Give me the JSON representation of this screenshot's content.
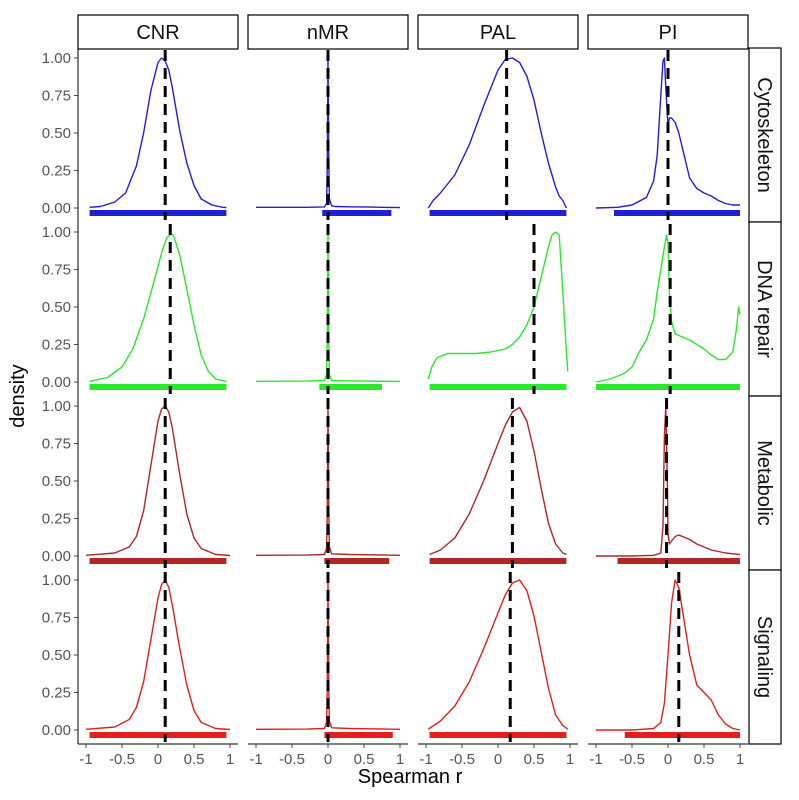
{
  "chart_data": {
    "type": "line",
    "subtype": "faceted-density",
    "xlabel": "Spearman r",
    "ylabel": "density",
    "xlim": [
      -1,
      1
    ],
    "ylim": [
      0,
      1
    ],
    "x_ticks": [
      -1,
      -0.5,
      0,
      0.5,
      1
    ],
    "x_tick_labels": [
      "-1",
      "-0.5",
      "0",
      "0.5",
      "1"
    ],
    "y_ticks": [
      0,
      0.25,
      0.5,
      0.75,
      1
    ],
    "y_tick_labels": [
      "0.00",
      "0.25",
      "0.50",
      "0.75",
      "1.00"
    ],
    "columns": [
      "CNR",
      "nMR",
      "PAL",
      "PI"
    ],
    "rows": [
      {
        "name": "Cytoskeleton",
        "color": "#1f1fd6"
      },
      {
        "name": "DNA repair",
        "color": "#2ce82c"
      },
      {
        "name": "Metabolic",
        "color": "#b22626"
      },
      {
        "name": "Signaling",
        "color": "#e0201c"
      }
    ],
    "panels": [
      {
        "row": "Cytoskeleton",
        "column": "CNR",
        "median": 0.1,
        "rug": [
          -0.95,
          0.95
        ],
        "x": [
          -0.95,
          -0.8,
          -0.6,
          -0.45,
          -0.3,
          -0.2,
          -0.1,
          0,
          0.05,
          0.1,
          0.15,
          0.2,
          0.3,
          0.4,
          0.5,
          0.6,
          0.75,
          0.9,
          0.95
        ],
        "y": [
          0.005,
          0.01,
          0.04,
          0.1,
          0.28,
          0.5,
          0.78,
          0.97,
          1.0,
          0.98,
          0.92,
          0.8,
          0.52,
          0.3,
          0.15,
          0.06,
          0.02,
          0.005,
          0.003
        ]
      },
      {
        "row": "Cytoskeleton",
        "column": "nMR",
        "median": 0,
        "rug": [
          -0.08,
          0.88
        ],
        "x": [
          -1,
          -0.3,
          -0.05,
          -0.02,
          -0.01,
          0,
          0.01,
          0.02,
          0.05,
          0.1,
          0.3,
          0.6,
          1
        ],
        "y": [
          0.005,
          0.005,
          0.007,
          0.03,
          0.3,
          1.0,
          0.35,
          0.06,
          0.015,
          0.01,
          0.008,
          0.006,
          0.003
        ]
      },
      {
        "row": "Cytoskeleton",
        "column": "PAL",
        "median": 0.12,
        "rug": [
          -0.95,
          0.95
        ],
        "x": [
          -0.97,
          -0.9,
          -0.8,
          -0.6,
          -0.4,
          -0.2,
          0,
          0.1,
          0.2,
          0.3,
          0.4,
          0.5,
          0.6,
          0.7,
          0.8,
          0.85,
          0.9,
          0.95
        ],
        "y": [
          0.0,
          0.05,
          0.1,
          0.22,
          0.42,
          0.68,
          0.92,
          0.99,
          1.0,
          0.97,
          0.88,
          0.72,
          0.5,
          0.3,
          0.14,
          0.08,
          0.05,
          0.0
        ]
      },
      {
        "row": "Cytoskeleton",
        "column": "PI",
        "median": 0,
        "rug": [
          -0.75,
          1.0
        ],
        "x": [
          -1,
          -0.7,
          -0.5,
          -0.3,
          -0.2,
          -0.15,
          -0.1,
          -0.07,
          -0.05,
          -0.03,
          0,
          0.02,
          0.05,
          0.1,
          0.15,
          0.2,
          0.25,
          0.3,
          0.4,
          0.5,
          0.6,
          0.7,
          0.8,
          0.9,
          1
        ],
        "y": [
          0.0,
          0.005,
          0.02,
          0.07,
          0.18,
          0.35,
          0.75,
          0.98,
          1.0,
          0.8,
          0.55,
          0.6,
          0.6,
          0.57,
          0.5,
          0.4,
          0.3,
          0.2,
          0.13,
          0.1,
          0.08,
          0.05,
          0.03,
          0.02,
          0.02
        ]
      },
      {
        "row": "DNA repair",
        "column": "CNR",
        "median": 0.17,
        "rug": [
          -0.95,
          0.95
        ],
        "x": [
          -0.95,
          -0.7,
          -0.5,
          -0.35,
          -0.2,
          -0.05,
          0.05,
          0.12,
          0.18,
          0.22,
          0.3,
          0.4,
          0.5,
          0.6,
          0.7,
          0.8,
          0.95
        ],
        "y": [
          0.005,
          0.03,
          0.1,
          0.22,
          0.42,
          0.68,
          0.86,
          0.96,
          0.99,
          0.97,
          0.85,
          0.62,
          0.38,
          0.18,
          0.07,
          0.02,
          0.003
        ]
      },
      {
        "row": "DNA repair",
        "column": "nMR",
        "median": 0,
        "rug": [
          -0.12,
          0.75
        ],
        "x": [
          -1,
          -0.3,
          -0.05,
          -0.02,
          -0.01,
          0,
          0.01,
          0.02,
          0.05,
          0.2,
          0.5,
          1
        ],
        "y": [
          0.005,
          0.006,
          0.01,
          0.05,
          0.3,
          1.0,
          0.3,
          0.05,
          0.01,
          0.008,
          0.006,
          0.004
        ]
      },
      {
        "row": "DNA repair",
        "column": "PAL",
        "median": 0.5,
        "rug": [
          -0.95,
          0.95
        ],
        "x": [
          -0.97,
          -0.92,
          -0.85,
          -0.7,
          -0.5,
          -0.3,
          -0.1,
          0.1,
          0.2,
          0.3,
          0.4,
          0.5,
          0.6,
          0.7,
          0.75,
          0.8,
          0.85,
          0.9,
          0.95,
          0.97
        ],
        "y": [
          0.02,
          0.1,
          0.16,
          0.19,
          0.19,
          0.19,
          0.2,
          0.22,
          0.25,
          0.3,
          0.38,
          0.5,
          0.7,
          0.9,
          0.98,
          1.0,
          0.98,
          0.6,
          0.2,
          0.07
        ]
      },
      {
        "row": "DNA repair",
        "column": "PI",
        "median": 0.03,
        "rug": [
          -1.0,
          1.0
        ],
        "x": [
          -1,
          -0.8,
          -0.6,
          -0.5,
          -0.4,
          -0.3,
          -0.2,
          -0.15,
          -0.1,
          -0.05,
          -0.02,
          0,
          0.02,
          0.05,
          0.1,
          0.2,
          0.3,
          0.4,
          0.5,
          0.55,
          0.6,
          0.7,
          0.8,
          0.9,
          0.95,
          0.98,
          1
        ],
        "y": [
          0.0,
          0.02,
          0.06,
          0.1,
          0.2,
          0.28,
          0.42,
          0.6,
          0.75,
          0.9,
          0.98,
          0.92,
          0.6,
          0.4,
          0.32,
          0.3,
          0.28,
          0.25,
          0.22,
          0.2,
          0.18,
          0.15,
          0.15,
          0.2,
          0.35,
          0.5,
          0.45
        ]
      },
      {
        "row": "Metabolic",
        "column": "CNR",
        "median": 0.1,
        "rug": [
          -0.95,
          0.95
        ],
        "x": [
          -1,
          -0.6,
          -0.4,
          -0.3,
          -0.2,
          -0.1,
          0,
          0.05,
          0.1,
          0.15,
          0.2,
          0.3,
          0.4,
          0.5,
          0.6,
          0.8,
          1
        ],
        "y": [
          0.005,
          0.02,
          0.06,
          0.13,
          0.3,
          0.6,
          0.9,
          0.98,
          1.0,
          0.96,
          0.85,
          0.55,
          0.28,
          0.12,
          0.05,
          0.01,
          0.003
        ]
      },
      {
        "row": "Metabolic",
        "column": "nMR",
        "median": 0,
        "rug": [
          -0.05,
          0.85
        ],
        "x": [
          -1,
          -0.3,
          -0.05,
          -0.02,
          -0.01,
          0,
          0.01,
          0.02,
          0.05,
          0.3,
          0.6,
          1
        ],
        "y": [
          0.005,
          0.006,
          0.01,
          0.05,
          0.3,
          1.0,
          0.35,
          0.06,
          0.015,
          0.01,
          0.008,
          0.005
        ]
      },
      {
        "row": "Metabolic",
        "column": "PAL",
        "median": 0.2,
        "rug": [
          -0.95,
          0.95
        ],
        "x": [
          -0.95,
          -0.8,
          -0.6,
          -0.4,
          -0.2,
          0,
          0.1,
          0.2,
          0.3,
          0.4,
          0.5,
          0.6,
          0.7,
          0.8,
          0.9,
          0.95
        ],
        "y": [
          0.01,
          0.04,
          0.12,
          0.28,
          0.5,
          0.75,
          0.87,
          0.96,
          0.99,
          0.9,
          0.7,
          0.45,
          0.22,
          0.08,
          0.02,
          0.01
        ]
      },
      {
        "row": "Metabolic",
        "column": "PI",
        "median": -0.02,
        "rug": [
          -0.7,
          1.0
        ],
        "x": [
          -1,
          -0.5,
          -0.2,
          -0.1,
          -0.07,
          -0.05,
          -0.03,
          -0.01,
          0,
          0.02,
          0.05,
          0.1,
          0.15,
          0.2,
          0.3,
          0.4,
          0.5,
          0.6,
          0.7,
          0.8,
          0.9,
          1
        ],
        "y": [
          0.0,
          0.0,
          0.005,
          0.02,
          0.2,
          0.8,
          1.0,
          0.5,
          0.15,
          0.08,
          0.1,
          0.13,
          0.14,
          0.13,
          0.11,
          0.08,
          0.06,
          0.04,
          0.03,
          0.02,
          0.015,
          0.01
        ]
      },
      {
        "row": "Signaling",
        "column": "CNR",
        "median": 0.1,
        "rug": [
          -0.95,
          0.95
        ],
        "x": [
          -1,
          -0.6,
          -0.4,
          -0.3,
          -0.2,
          -0.1,
          0,
          0.05,
          0.1,
          0.15,
          0.2,
          0.3,
          0.4,
          0.5,
          0.6,
          0.8,
          1
        ],
        "y": [
          0.005,
          0.02,
          0.07,
          0.15,
          0.32,
          0.6,
          0.88,
          0.97,
          1.0,
          0.95,
          0.83,
          0.55,
          0.3,
          0.13,
          0.05,
          0.01,
          0.003
        ]
      },
      {
        "row": "Signaling",
        "column": "nMR",
        "median": 0,
        "rug": [
          -0.05,
          0.9
        ],
        "x": [
          -1,
          -0.3,
          -0.05,
          -0.02,
          -0.01,
          0,
          0.01,
          0.02,
          0.05,
          0.3,
          0.6,
          1
        ],
        "y": [
          0.005,
          0.006,
          0.01,
          0.05,
          0.3,
          1.0,
          0.3,
          0.06,
          0.015,
          0.01,
          0.008,
          0.005
        ]
      },
      {
        "row": "Signaling",
        "column": "PAL",
        "median": 0.17,
        "rug": [
          -0.95,
          0.95
        ],
        "x": [
          -0.97,
          -0.8,
          -0.6,
          -0.4,
          -0.2,
          0,
          0.1,
          0.2,
          0.3,
          0.4,
          0.5,
          0.6,
          0.7,
          0.8,
          0.9,
          0.97
        ],
        "y": [
          0.005,
          0.06,
          0.16,
          0.32,
          0.54,
          0.78,
          0.9,
          0.98,
          1.0,
          0.93,
          0.76,
          0.52,
          0.28,
          0.1,
          0.03,
          0.005
        ]
      },
      {
        "row": "Signaling",
        "column": "PI",
        "median": 0.15,
        "rug": [
          -0.6,
          1.0
        ],
        "x": [
          -1,
          -0.5,
          -0.2,
          -0.1,
          -0.05,
          0,
          0.05,
          0.1,
          0.15,
          0.2,
          0.3,
          0.4,
          0.5,
          0.6,
          0.7,
          0.8,
          0.9,
          1
        ],
        "y": [
          0.0,
          0.0,
          0.01,
          0.05,
          0.18,
          0.5,
          0.85,
          1.0,
          0.95,
          0.8,
          0.5,
          0.3,
          0.25,
          0.2,
          0.1,
          0.04,
          0.01,
          0.0
        ]
      }
    ]
  }
}
